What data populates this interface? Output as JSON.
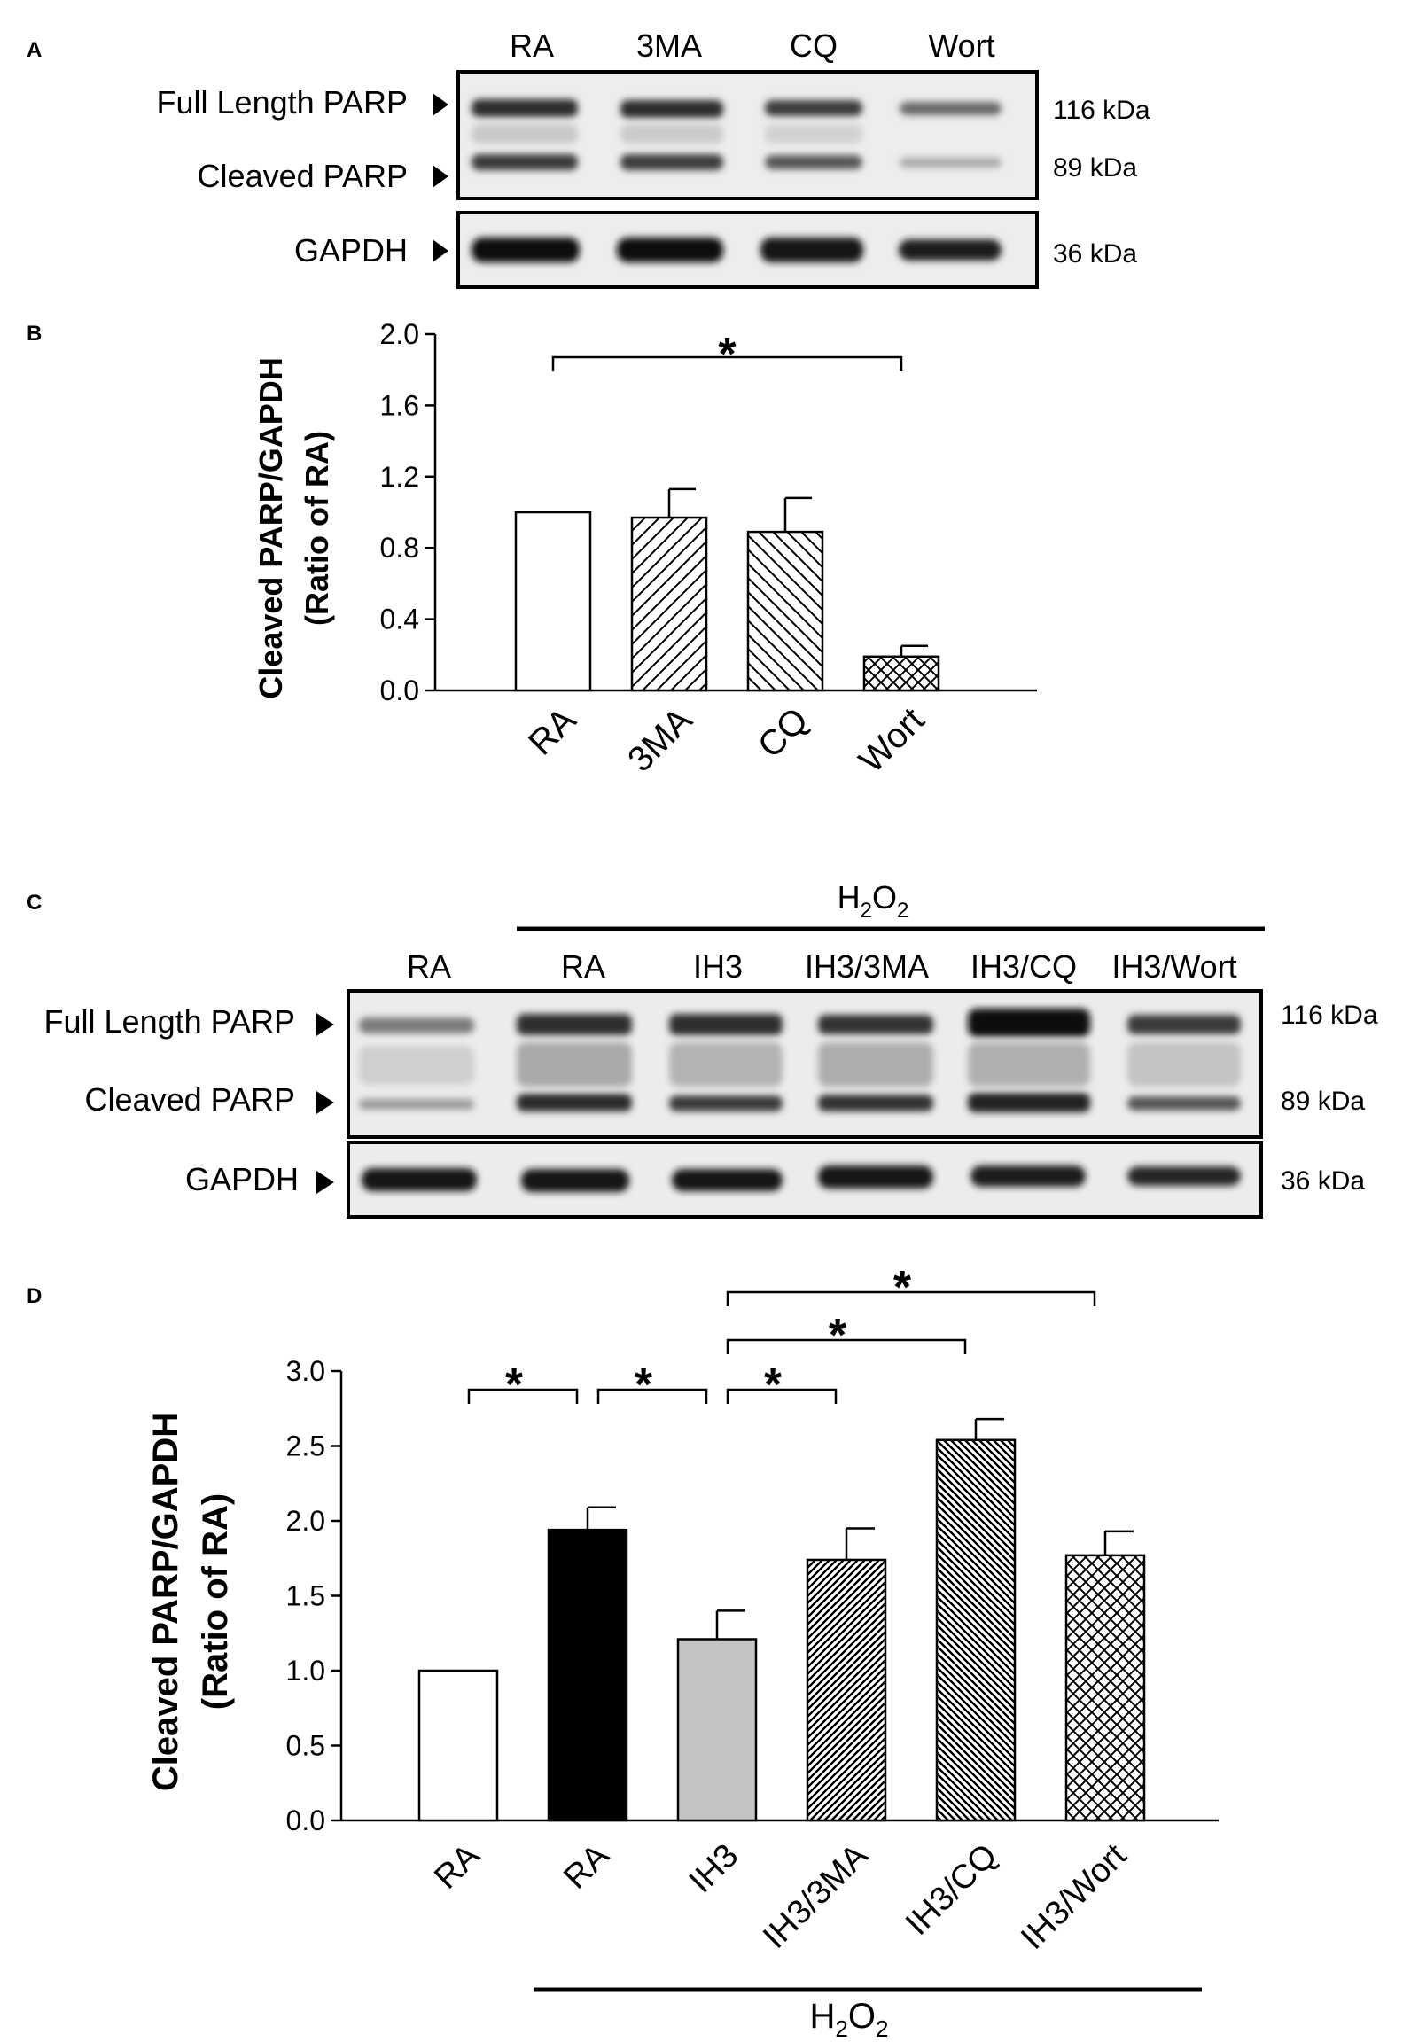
{
  "panels": {
    "A": {
      "label": "A",
      "lanes": [
        "RA",
        "3MA",
        "CQ",
        "Wort"
      ],
      "bands": [
        "Full Length PARP",
        "Cleaved PARP",
        "GAPDH"
      ],
      "sizes": [
        "116 kDa",
        "89 kDa",
        "36 kDa"
      ]
    },
    "B": {
      "label": "B"
    },
    "C": {
      "label": "C",
      "treatment": "H",
      "treatment_sub1": "2",
      "treatment_mid": "O",
      "treatment_sub2": "2",
      "lanes": [
        "RA",
        "RA",
        "IH3",
        "IH3/3MA",
        "IH3/CQ",
        "IH3/Wort"
      ],
      "bands": [
        "Full Length PARP",
        "Cleaved PARP",
        "GAPDH"
      ],
      "sizes": [
        "116 kDa",
        "89 kDa",
        "36 kDa"
      ]
    },
    "D": {
      "label": "D"
    }
  },
  "chart_data": [
    {
      "type": "bar",
      "panel": "B",
      "categories": [
        "RA",
        "3MA",
        "CQ",
        "Wort"
      ],
      "values": [
        1.0,
        0.97,
        0.89,
        0.19
      ],
      "errors": [
        0,
        0.16,
        0.19,
        0.06
      ],
      "fills": [
        "white",
        "hatch-up",
        "hatch-down",
        "crosshatch"
      ],
      "ylabel_line1": "Cleaved PARP/GAPDH",
      "ylabel_line2": "(Ratio of RA)",
      "ylim": [
        0,
        2.0
      ],
      "yticks": [
        "0.0",
        "0.4",
        "0.8",
        "1.2",
        "1.6",
        "2.0"
      ],
      "significance": [
        {
          "from": 0,
          "to": 3,
          "label": "*"
        }
      ]
    },
    {
      "type": "bar",
      "panel": "D",
      "categories": [
        "RA",
        "RA",
        "IH3",
        "IH3/3MA",
        "IH3/CQ",
        "IH3/Wort"
      ],
      "values": [
        1.0,
        1.94,
        1.21,
        1.74,
        2.54,
        1.77
      ],
      "errors": [
        0,
        0.15,
        0.19,
        0.21,
        0.14,
        0.16
      ],
      "fills": [
        "white",
        "black",
        "gray",
        "hatch-up-dark",
        "hatch-down-dark",
        "crosshatch"
      ],
      "ylabel_line1": "Cleaved PARP/GAPDH",
      "ylabel_line2": "(Ratio of RA)",
      "ylim": [
        0,
        3.0
      ],
      "yticks": [
        "0.0",
        "0.5",
        "1.0",
        "1.5",
        "2.0",
        "2.5",
        "3.0"
      ],
      "significance": [
        {
          "from": 0,
          "to": 1,
          "label": "*"
        },
        {
          "from": 1,
          "to": 2,
          "label": "*"
        },
        {
          "from": 2,
          "to": 3,
          "label": "*"
        },
        {
          "from": 2,
          "to": 4,
          "label": "*"
        },
        {
          "from": 2,
          "to": 5,
          "label": "*"
        }
      ],
      "treatment_group": {
        "from": 1,
        "to": 5,
        "label": "H",
        "sub1": "2",
        "mid": "O",
        "sub2": "2"
      }
    }
  ]
}
